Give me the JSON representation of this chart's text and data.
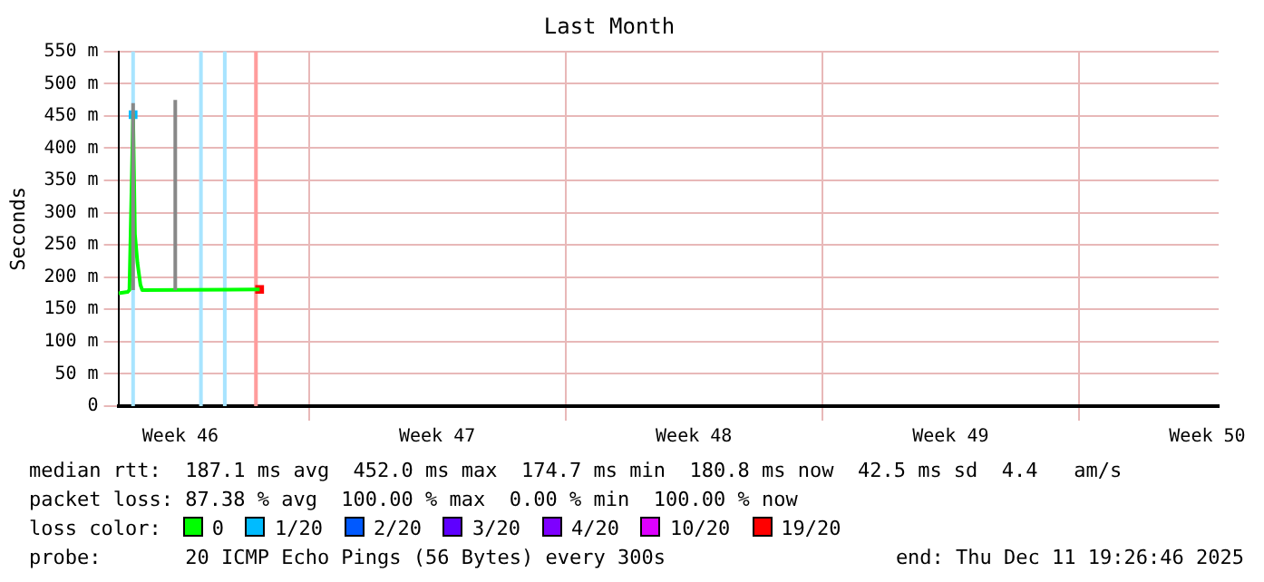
{
  "chart_data": {
    "type": "line",
    "title": "Last Month",
    "ylabel": "Seconds",
    "legend": "bottom",
    "legend_title": "loss color:",
    "grid": true,
    "marker": "none",
    "line_style": "solid",
    "xlim": [
      "2025-11-11T19:26",
      "2025-12-11T19:26"
    ],
    "xticks": [
      {
        "value": "2025-11-13T12:00",
        "label": "Week 46"
      },
      {
        "value": "2025-11-17",
        "label": null
      },
      {
        "value": "2025-11-20T12:00",
        "label": "Week 47"
      },
      {
        "value": "2025-11-24",
        "label": null
      },
      {
        "value": "2025-11-27T12:00",
        "label": "Week 48"
      },
      {
        "value": "2025-12-01",
        "label": null
      },
      {
        "value": "2025-12-04T12:00",
        "label": "Week 49"
      },
      {
        "value": "2025-12-08",
        "label": null
      },
      {
        "value": "2025-12-11T12:00",
        "label": "Week 50"
      }
    ],
    "ylim": [
      0,
      550
    ],
    "yticks": [
      {
        "value": 0,
        "label": "0"
      },
      {
        "value": 50,
        "label": "50 m"
      },
      {
        "value": 100,
        "label": "100 m"
      },
      {
        "value": 150,
        "label": "150 m"
      },
      {
        "value": 200,
        "label": "200 m"
      },
      {
        "value": 250,
        "label": "250 m"
      },
      {
        "value": 300,
        "label": "300 m"
      },
      {
        "value": 350,
        "label": "350 m"
      },
      {
        "value": 400,
        "label": "400 m"
      },
      {
        "value": 450,
        "label": "450 m"
      },
      {
        "value": 500,
        "label": "500 m"
      },
      {
        "value": 550,
        "label": "550 m"
      }
    ],
    "series": [
      {
        "color": "#888888",
        "x": [
          "2025-11-12T05:02",
          "2025-11-12T05:02"
        ],
        "values": [
          180,
          470
        ]
      },
      {
        "color": "#888888",
        "x": [
          "2025-11-13T08:38",
          "2025-11-13T08:38"
        ],
        "values": [
          180,
          475
        ]
      },
      {
        "name": "0",
        "color": "#00ff00",
        "x": [
          "2025-11-11T19:26",
          "2025-11-12T01:26",
          "2025-11-12T02:38",
          "2025-11-12T05:02",
          "2025-11-12T06:14",
          "2025-11-12T07:54",
          "2025-11-12T09:50",
          "2025-11-12T11:02",
          "2025-11-15T15:50"
        ],
        "values": [
          175,
          177,
          180,
          452,
          267,
          222,
          188,
          180,
          181
        ]
      },
      {
        "name": "1/20",
        "color": "#00bbff",
        "marker": "square",
        "x": [
          "2025-11-12T05:02"
        ],
        "values": [
          452
        ]
      },
      {
        "name": "2/20",
        "color": "#0059ff"
      },
      {
        "name": "3/20",
        "color": "#5e00ff"
      },
      {
        "name": "4/20",
        "color": "#7e00ff"
      },
      {
        "name": "10/20",
        "color": "#dd00ff"
      },
      {
        "name": "19/20",
        "color": "#ff0000",
        "marker": "square",
        "x": [
          "2025-11-15T15:50"
        ],
        "values": [
          181
        ]
      }
    ],
    "bands": [
      {
        "axis": "x",
        "from": "2025-11-12T03:50",
        "to": "2025-11-12T06:14",
        "color": "#a8e4ff"
      },
      {
        "axis": "x",
        "from": "2025-11-14T00:14",
        "to": "2025-11-14T02:38",
        "color": "#a8e4ff"
      },
      {
        "axis": "x",
        "from": "2025-11-14T15:50",
        "to": "2025-11-14T18:14",
        "color": "#a8e4ff"
      },
      {
        "axis": "x",
        "from": "2025-11-15T12:14",
        "to": "2025-11-15T14:38",
        "color": "#ff9c9c"
      }
    ],
    "annotations": [
      "median rtt:  187.1 ms avg  452.0 ms max  174.7 ms min  180.8 ms now  42.5 ms sd  4.4   am/s",
      "packet loss: 87.38 % avg  100.00 % max  0.00 % min  100.00 % now",
      "probe:       20 ICMP Echo Pings (56 Bytes) every 300s",
      "end: Thu Dec 11 19:26:46 2025"
    ]
  }
}
